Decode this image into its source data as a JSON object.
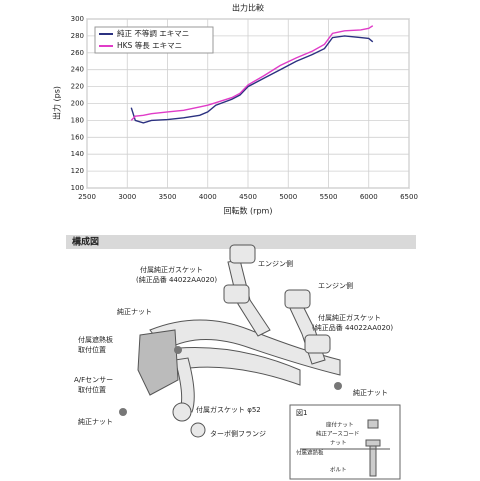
{
  "chart_data": {
    "type": "line",
    "title": "出力比較",
    "xlabel": "回転数 (rpm)",
    "ylabel": "出力 (ps)",
    "x": [
      3050,
      3100,
      3200,
      3300,
      3500,
      3700,
      3900,
      4000,
      4100,
      4300,
      4400,
      4500,
      4700,
      4900,
      5100,
      5300,
      5450,
      5550,
      5700,
      5900,
      6000,
      6050
    ],
    "series": [
      {
        "name": "純正 不等調 エキマニ",
        "color": "#2b3180",
        "values": [
          195,
          180,
          177,
          180,
          181,
          183,
          186,
          190,
          198,
          205,
          210,
          220,
          230,
          240,
          250,
          258,
          265,
          278,
          280,
          278,
          277,
          273
        ]
      },
      {
        "name": "HKS 等長 エキマニ",
        "color": "#e03cc8",
        "values": [
          180,
          185,
          186,
          188,
          190,
          192,
          196,
          198,
          201,
          207,
          212,
          222,
          233,
          245,
          254,
          262,
          270,
          283,
          286,
          287,
          289,
          292
        ]
      }
    ],
    "xlim": [
      2500,
      6500
    ],
    "xticks": [
      2500,
      3000,
      3500,
      4000,
      4500,
      5000,
      5500,
      6000,
      6500
    ],
    "ylim": [
      100,
      300
    ],
    "yticks": [
      100,
      120,
      140,
      160,
      180,
      200,
      220,
      240,
      260,
      280,
      300
    ],
    "grid": true,
    "legend": "upper-left"
  },
  "diagram": {
    "title": "構成図",
    "labels": {
      "engine_side_1": "エンジン側",
      "engine_side_2": "エンジン側",
      "gasket_1": [
        "付属純正ガスケット",
        "(純正品番 44022AA020)"
      ],
      "gasket_2": [
        "付属純正ガスケット",
        "(純正品番 44022AA020)"
      ],
      "nut_1": "純正ナット",
      "nut_2": "純正ナット",
      "nut_3": "純正ナット",
      "heat_shield": [
        "付属遮熱板",
        "取付位置"
      ],
      "af_sensor": [
        "A/Fセンサー",
        "取付位置"
      ],
      "gasket_52": "付属ガスケット φ52",
      "turbo_flange": "ターボ側フランジ"
    },
    "inset": {
      "title": "図1",
      "labels": [
        "座付ナット",
        "純正アースコード",
        "ナット",
        "付属遮熱板",
        "ボルト"
      ]
    }
  }
}
